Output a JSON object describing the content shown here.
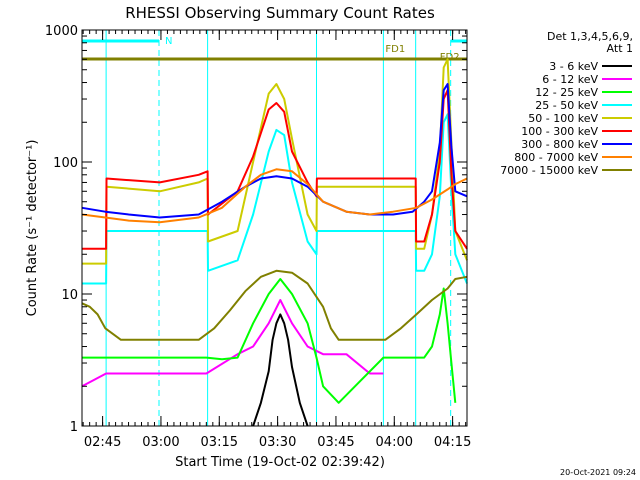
{
  "chart_data": {
    "type": "line",
    "title": "RHESSI Observing Summary Count Rates",
    "xlabel": "Start Time (19-Oct-02 02:39:42)",
    "ylabel": "Count Rate (s⁻¹ detector⁻¹)",
    "yscale": "log",
    "ylim": [
      1,
      1000
    ],
    "xlim_min": [
      0,
      99
    ],
    "y_ticks": [
      {
        "value": 1,
        "label": "1"
      },
      {
        "value": 10,
        "label": "10"
      },
      {
        "value": 100,
        "label": "100"
      },
      {
        "value": 1000,
        "label": "1000"
      }
    ],
    "x_ticks": [
      {
        "value": 5.3,
        "label": "02:45"
      },
      {
        "value": 20.3,
        "label": "03:00"
      },
      {
        "value": 35.3,
        "label": "03:15"
      },
      {
        "value": 50.3,
        "label": "03:30"
      },
      {
        "value": 65.3,
        "label": "03:45"
      },
      {
        "value": 80.3,
        "label": "04:00"
      },
      {
        "value": 95.3,
        "label": "04:15"
      }
    ],
    "legend": {
      "position": "right",
      "header": [
        "Det 1,3,4,5,6,9,",
        "Att 1"
      ]
    },
    "annotations": {
      "night_label": "N",
      "fd1_label": "FD1",
      "fd2_label": "FD2",
      "timestamp": "20-Oct-2021 09:24"
    },
    "segments": {
      "night": [
        [
          0,
          19.8
        ]
      ],
      "fd": [
        [
          94.8,
          99
        ]
      ],
      "fd_full": [
        [
          0,
          99
        ]
      ]
    },
    "boundaries": [
      {
        "x": 6.2,
        "style": "solid"
      },
      {
        "x": 19.8,
        "style": "dashed"
      },
      {
        "x": 32.3,
        "style": "solid"
      },
      {
        "x": 60.3,
        "style": "solid"
      },
      {
        "x": 77.5,
        "style": "solid"
      },
      {
        "x": 85.8,
        "style": "solid"
      },
      {
        "x": 94.8,
        "style": "dashed"
      }
    ],
    "series": [
      {
        "name": "3 - 6 keV",
        "color": "#000000",
        "x": [
          44,
          46,
          48,
          49,
          50,
          51,
          52,
          53,
          54,
          56,
          58
        ],
        "y": [
          1,
          1.5,
          2.6,
          4.5,
          6,
          7,
          6,
          4.5,
          2.8,
          1.5,
          1
        ]
      },
      {
        "name": "6 - 12 keV",
        "color": "#ff00ff",
        "x": [
          0,
          6.2,
          20,
          32,
          40,
          44,
          48,
          51,
          54,
          58,
          62,
          68,
          74,
          77.5
        ],
        "y": [
          2,
          2.5,
          2.5,
          2.5,
          3.5,
          4,
          6,
          9,
          6,
          4,
          3.5,
          3.5,
          2.5,
          2.5
        ]
      },
      {
        "name": "12 - 25 keV",
        "color": "#00ff00",
        "x": [
          0,
          6.2,
          32,
          36,
          40,
          44,
          48,
          51,
          54,
          58,
          60.3,
          62,
          66,
          77.5,
          86,
          88,
          90,
          92,
          93,
          94,
          95,
          96
        ],
        "y": [
          3.3,
          3.3,
          3.3,
          3.2,
          3.3,
          6,
          10,
          13,
          10,
          6,
          3.3,
          2,
          1.5,
          3.3,
          3.3,
          3.3,
          4,
          7,
          11,
          6,
          3,
          1.5
        ]
      },
      {
        "name": "25 - 50 keV",
        "color": "#00ffff",
        "x": [
          0,
          6.2,
          6.3,
          32.3,
          32.4,
          40,
          44,
          48,
          50,
          52,
          54,
          58,
          60.3,
          60.4,
          77.5,
          77.6,
          85.8,
          85.9,
          88,
          90,
          92,
          93,
          94,
          95,
          96,
          99
        ],
        "y": [
          12,
          12,
          30,
          30,
          15,
          18,
          40,
          120,
          175,
          160,
          70,
          25,
          20,
          30,
          30,
          30,
          30,
          15,
          15,
          20,
          55,
          200,
          230,
          60,
          20,
          12
        ]
      },
      {
        "name": "50 - 100 keV",
        "color": "#cccc00",
        "x": [
          0,
          6.2,
          6.3,
          20,
          30,
          32.3,
          32.4,
          40,
          44,
          48,
          50,
          52,
          54,
          58,
          60.3,
          60.4,
          77.5,
          77.6,
          85.8,
          85.9,
          88,
          90,
          92,
          93,
          94,
          95,
          96,
          99
        ],
        "y": [
          17,
          17,
          65,
          60,
          70,
          75,
          25,
          30,
          100,
          330,
          390,
          300,
          150,
          40,
          30,
          65,
          65,
          65,
          65,
          22,
          22,
          40,
          120,
          520,
          600,
          140,
          30,
          18
        ]
      },
      {
        "name": "100 - 300 keV",
        "color": "#ff0000",
        "x": [
          0,
          6.2,
          6.3,
          20,
          30,
          32.3,
          32.4,
          40,
          44,
          48,
          50,
          52,
          54,
          58,
          60.3,
          60.4,
          77.5,
          77.6,
          85.8,
          85.9,
          88,
          90,
          92,
          93,
          94,
          95,
          96,
          99
        ],
        "y": [
          22,
          22,
          75,
          70,
          80,
          85,
          40,
          60,
          110,
          250,
          280,
          240,
          120,
          70,
          55,
          75,
          75,
          75,
          75,
          25,
          25,
          40,
          100,
          300,
          350,
          80,
          30,
          22
        ]
      },
      {
        "name": "300 - 800 keV",
        "color": "#0000ff",
        "x": [
          0,
          6,
          12,
          20,
          30,
          36,
          42,
          46,
          50,
          54,
          58,
          62,
          68,
          74,
          80,
          85,
          88,
          90,
          92,
          93,
          94,
          95,
          96,
          99
        ],
        "y": [
          45,
          42,
          40,
          38,
          40,
          50,
          65,
          75,
          78,
          75,
          65,
          50,
          42,
          40,
          40,
          42,
          50,
          60,
          140,
          350,
          390,
          130,
          60,
          55
        ]
      },
      {
        "name": "800 - 7000 keV",
        "color": "#ff8000",
        "x": [
          0,
          6,
          12,
          20,
          30,
          36,
          42,
          46,
          50,
          54,
          58,
          62,
          68,
          74,
          80,
          86,
          90,
          94,
          96,
          99
        ],
        "y": [
          40,
          38,
          36,
          35,
          38,
          45,
          65,
          80,
          88,
          85,
          68,
          50,
          42,
          40,
          42,
          45,
          52,
          62,
          68,
          75
        ]
      },
      {
        "name": "7000 - 15000 keV",
        "color": "#808000",
        "x": [
          0,
          2,
          4,
          6,
          10,
          14,
          20,
          26,
          30,
          34,
          38,
          42,
          46,
          50,
          54,
          58,
          62,
          64,
          66,
          70,
          74,
          78,
          82,
          86,
          90,
          94,
          96,
          99
        ],
        "y": [
          8.5,
          8,
          7,
          5.5,
          4.5,
          4.5,
          4.5,
          4.5,
          4.5,
          5.5,
          7.5,
          10.5,
          13.5,
          15,
          14.5,
          12,
          8,
          5.5,
          4.5,
          4.5,
          4.5,
          4.5,
          5.5,
          7,
          9,
          11,
          13,
          13.5
        ]
      }
    ]
  }
}
